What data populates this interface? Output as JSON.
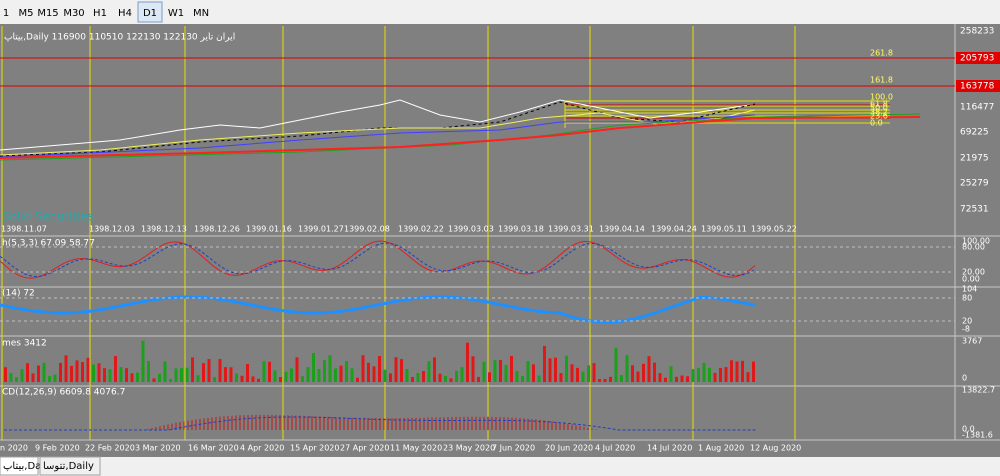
{
  "toolbar": {
    "timeframes": [
      "1",
      "M5",
      "M15",
      "M30",
      "H1",
      "H4",
      "D1",
      "W1",
      "MN"
    ],
    "selected_index": 6
  },
  "main": {
    "header": "بیتاپ,Daily  116900 110510 122130 122130  ایران تایر",
    "price_labels": [
      "258233",
      "116477",
      "69225",
      "21975",
      "25279",
      "72531"
    ],
    "highlighted_prices": [
      "205793",
      "163778"
    ],
    "fib_levels": [
      "261.8",
      "161.8",
      "100.0",
      "61.8",
      "50.0",
      "38.2",
      "23.6",
      "0.0"
    ],
    "watermark": "Solid Securities",
    "dates": [
      "1398.11.07",
      "1398.12.03",
      "1398.12.13",
      "1398.12.26",
      "1399.01.16",
      "1399.01.27",
      "1399.02.08",
      "1399.02.22",
      "1399.03.03",
      "1399.03.18",
      "1399.03.31",
      "1399.04.14",
      "1399.04.24",
      "1399.05.11",
      "1399.05.22"
    ]
  },
  "stochastic": {
    "label": "h(5,3,3) 67.09 58.77",
    "scale": [
      "100.00",
      "80.00",
      "20.00",
      "0.00"
    ]
  },
  "rsi": {
    "label": "(14) 72",
    "scale": [
      "104",
      "80",
      "20",
      "-8"
    ]
  },
  "volume": {
    "label": "mes 3412",
    "scale": [
      "3767",
      "0"
    ]
  },
  "macd": {
    "label": "CD(12,26,9) 6609.8 4076.7",
    "scale": [
      "13822.7",
      "0.0",
      "-1381.6"
    ]
  },
  "time_axis": [
    "n 2020",
    "9 Feb 2020",
    "22 Feb 2020",
    "3 Mar 2020",
    "16 Mar 2020",
    "4 Apr 2020",
    "15 Apr 2020",
    "27 Apr 2020",
    "11 May 2020",
    "23 May 2020",
    "7 Jun 2020",
    "20 Jun 2020",
    "4 Jul 2020",
    "14 Jul 2020",
    "1 Aug 2020",
    "12 Aug 2020"
  ],
  "tabs": [
    "بیتاپ,Daily",
    "تتوسا,Daily"
  ]
}
